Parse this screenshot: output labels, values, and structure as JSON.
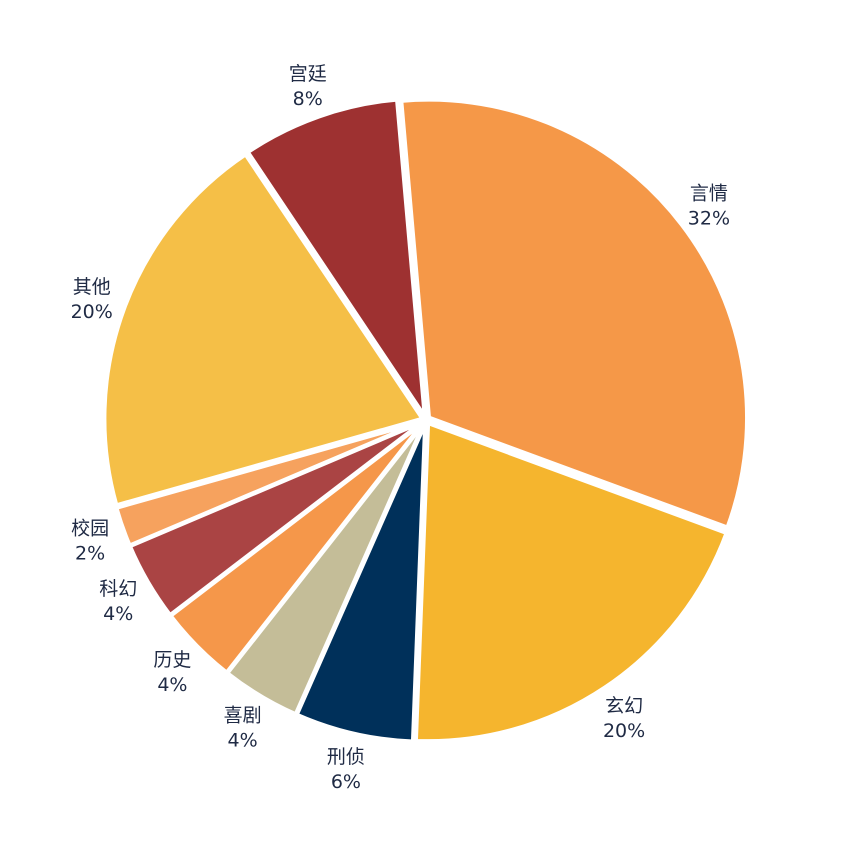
{
  "chart_data": {
    "type": "pie",
    "start_angle_deg": 95,
    "direction": "clockwise",
    "explode_fraction": 0.012,
    "slices": [
      {
        "label": "言情",
        "percent_label": "32%",
        "value": 32,
        "color": "#f59848"
      },
      {
        "label": "玄幻",
        "percent_label": "20%",
        "value": 20,
        "color": "#f5b52e"
      },
      {
        "label": "刑侦",
        "percent_label": "6%",
        "value": 6,
        "color": "#00305a"
      },
      {
        "label": "喜剧",
        "percent_label": "4%",
        "value": 4,
        "color": "#c4bd98"
      },
      {
        "label": "历史",
        "percent_label": "4%",
        "value": 4,
        "color": "#f5974a"
      },
      {
        "label": "科幻",
        "percent_label": "4%",
        "value": 4,
        "color": "#aa4444"
      },
      {
        "label": "校园",
        "percent_label": "2%",
        "value": 2,
        "color": "#f6a25e"
      },
      {
        "label": "其他",
        "percent_label": "20%",
        "value": 20,
        "color": "#f5bf47"
      },
      {
        "label": "宫廷",
        "percent_label": "8%",
        "value": 8,
        "color": "#9e3131"
      }
    ]
  }
}
